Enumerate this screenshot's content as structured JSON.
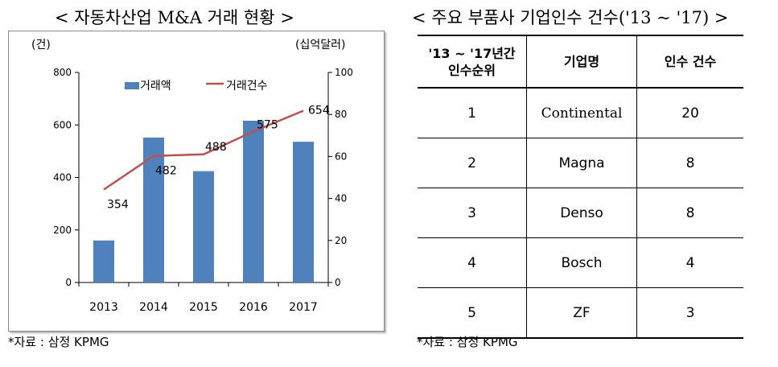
{
  "left": {
    "title": "< 자동차산업 M&A 거래 현황 >",
    "source": "*자료 : 삼정 KPMG"
  },
  "right": {
    "title": "< 주요 부품사 기업인수 건수('13 ~ '17) >",
    "source": "*자료 : 삼정 KPMG",
    "table": {
      "headers": [
        "'13 ~ '17년간\n인수순위",
        "기업명",
        "인수 건수"
      ],
      "rows": [
        [
          "1",
          "Continental",
          "20"
        ],
        [
          "2",
          "Magna",
          "8"
        ],
        [
          "3",
          "Denso",
          "8"
        ],
        [
          "4",
          "Bosch",
          "4"
        ],
        [
          "5",
          "ZF",
          "3"
        ]
      ]
    }
  },
  "chart_data": {
    "type": "bar",
    "categories": [
      "2013",
      "2014",
      "2015",
      "2016",
      "2017"
    ],
    "series": [
      {
        "name": "거래액",
        "type": "bar",
        "axis": "right",
        "unit": "십억달러",
        "values": [
          20,
          69,
          53,
          77,
          67
        ],
        "color": "#4f81bd"
      },
      {
        "name": "거래건수",
        "type": "line",
        "axis": "left",
        "unit": "건",
        "values": [
          354,
          482,
          488,
          575,
          654
        ],
        "data_labels": [
          "354",
          "482",
          "488",
          "575",
          "654"
        ],
        "color": "#c0504d"
      }
    ],
    "left_axis": {
      "label": "(건)",
      "min": 0,
      "max": 800,
      "ticks": [
        0,
        200,
        400,
        600,
        800
      ]
    },
    "right_axis": {
      "label": "(십억달러)",
      "min": 0,
      "max": 100,
      "ticks": [
        0,
        20,
        40,
        60,
        80,
        100
      ]
    },
    "legend_position": "top",
    "grid": false
  }
}
